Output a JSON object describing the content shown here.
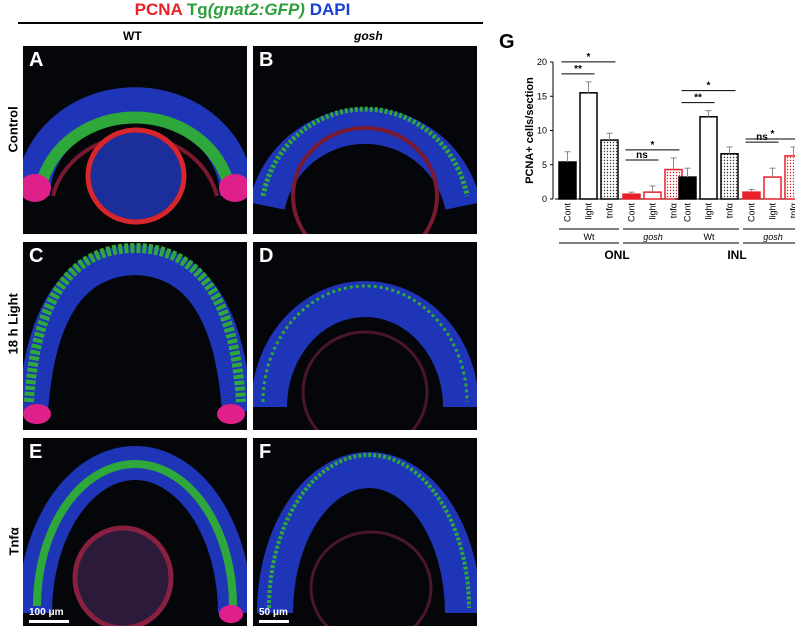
{
  "header": {
    "pcna": "PCNA",
    "tg": "Tg",
    "gene": "(gnat2:GFP)",
    "dapi": "DAPI"
  },
  "columns": {
    "wt": "WT",
    "gosh": "gosh"
  },
  "rows": {
    "control": "Control",
    "light": "18 h Light",
    "tnf": "Tnfα"
  },
  "panels": {
    "a": "A",
    "b": "B",
    "c": "C",
    "d": "D",
    "e": "E",
    "f": "F"
  },
  "scalebars": {
    "wt": "100 μm",
    "gosh": "50 μm"
  },
  "colors": {
    "pcna": "#e8202a",
    "gfp": "#2e9e3a",
    "dapi": "#1a3fd6"
  },
  "chart_data": {
    "type": "bar",
    "panel_label": "G",
    "ylabel": "PCNA+ cells/section",
    "ylim": [
      0,
      20
    ],
    "yticks": [
      0,
      5,
      10,
      15,
      20
    ],
    "categories": [
      "Cont",
      "light",
      "tnfα"
    ],
    "genotypes": [
      "Wt",
      "gosh"
    ],
    "groups": [
      {
        "name": "ONL",
        "series": [
          {
            "name": "Wt",
            "values": [
              5.4,
              15.5,
              8.6
            ],
            "errors": [
              1.5,
              1.6,
              1.0
            ]
          },
          {
            "name": "gosh",
            "values": [
              0.7,
              1.0,
              4.3
            ],
            "errors": [
              0.3,
              0.9,
              1.7
            ]
          }
        ],
        "sig": [
          "**",
          "*",
          "ns",
          "*"
        ]
      },
      {
        "name": "INL",
        "series": [
          {
            "name": "Wt",
            "values": [
              3.2,
              12.0,
              6.6
            ],
            "errors": [
              1.3,
              0.9,
              1.0
            ]
          },
          {
            "name": "gosh",
            "values": [
              1.0,
              3.2,
              6.3
            ],
            "errors": [
              0.4,
              1.3,
              1.3
            ]
          }
        ],
        "sig": [
          "**",
          "*",
          "ns",
          "*"
        ]
      }
    ]
  }
}
